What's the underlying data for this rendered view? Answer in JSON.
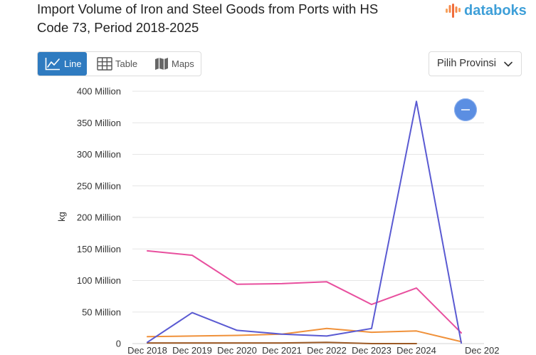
{
  "brand": {
    "logo_text": "databoks",
    "logo_icon": "databoks-logo-icon",
    "text_color": "#3e9fd8"
  },
  "colors": {
    "accent": "#2f7bc0",
    "options_button": "#5b8ee2"
  },
  "view_tabs": [
    {
      "label": "Line",
      "icon": "line-chart-icon",
      "active": true
    },
    {
      "label": "Table",
      "icon": "table-icon",
      "active": false
    },
    {
      "label": "Maps",
      "icon": "map-icon",
      "active": false
    }
  ],
  "province_select": {
    "selected": "Pilih Provinsi",
    "icon": "chevron-down-icon"
  },
  "chart_options_button": {
    "icon": "minus-icon"
  },
  "chart_data": {
    "type": "line",
    "title": "Import Volume of Iron and Steel Goods from Ports with HS Code 73, Period 2018-2025",
    "xlabel": "",
    "ylabel": "kg",
    "grid": true,
    "categories": [
      "Dec 2018",
      "Dec 2019",
      "Dec 2020",
      "Dec 2021",
      "Dec 2022",
      "Dec 2023",
      "Dec 2024",
      "Dec 202"
    ],
    "ylim": [
      0,
      400000000
    ],
    "yticks": [
      {
        "value": 0,
        "label": "0"
      },
      {
        "value": 50000000,
        "label": "50 Million"
      },
      {
        "value": 100000000,
        "label": "100 Million"
      },
      {
        "value": 150000000,
        "label": "150 Million"
      },
      {
        "value": 200000000,
        "label": "200 Million"
      },
      {
        "value": 250000000,
        "label": "250 Million"
      },
      {
        "value": 300000000,
        "label": "300 Million"
      },
      {
        "value": 350000000,
        "label": "350 Million"
      },
      {
        "value": 400000000,
        "label": "400 Million"
      }
    ],
    "series": [
      {
        "color": "#9c5a25",
        "values": [
          1000000,
          1000000,
          1000000,
          1000000,
          2000000,
          0,
          0,
          null
        ]
      },
      {
        "color": "#f0913a",
        "values": [
          11000000,
          12000000,
          13000000,
          15000000,
          24000000,
          18000000,
          20000000,
          3000000
        ]
      },
      {
        "color": "#e84f9e",
        "values": [
          147000000,
          140000000,
          94000000,
          95000000,
          98000000,
          62000000,
          88000000,
          17000000
        ]
      },
      {
        "color": "#5a5ad2",
        "values": [
          2000000,
          49000000,
          21000000,
          15000000,
          12000000,
          24000000,
          384000000,
          1000000
        ]
      }
    ]
  }
}
